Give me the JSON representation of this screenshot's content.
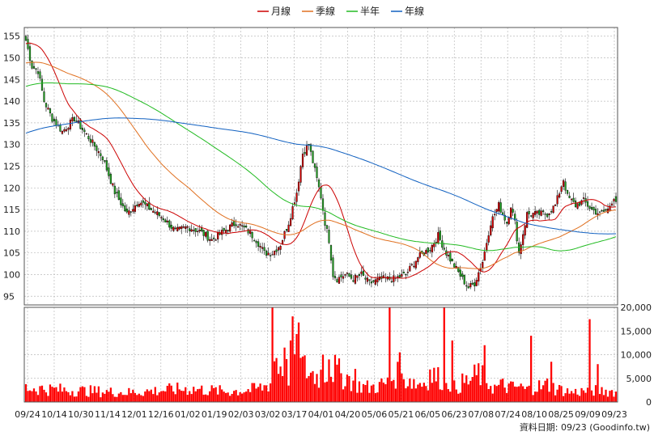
{
  "chart_data": {
    "type": "candlestick",
    "legend": {
      "placement": "top-center",
      "items": [
        {
          "label": "月線",
          "color": "#cc0000"
        },
        {
          "label": "季線",
          "color": "#e07020"
        },
        {
          "label": "半年",
          "color": "#22bb22"
        },
        {
          "label": "年線",
          "color": "#1060c0"
        }
      ]
    },
    "price_axis": {
      "ticks": [
        95,
        100,
        105,
        110,
        115,
        120,
        125,
        130,
        135,
        140,
        145,
        150,
        155
      ],
      "ylim": [
        93,
        157
      ]
    },
    "volume_axis": {
      "ticks": [
        "20,000",
        "15,000",
        "10,000",
        "5,000",
        "0"
      ],
      "values": [
        20000,
        15000,
        10000,
        5000,
        0
      ],
      "ylim": [
        0,
        20000
      ]
    },
    "x_ticks": [
      "09/24",
      "10/14",
      "10/30",
      "11/14",
      "12/01",
      "12/16",
      "01/02",
      "01/19",
      "02/03",
      "03/02",
      "03/17",
      "04/01",
      "04/20",
      "05/06",
      "05/21",
      "06/05",
      "06/23",
      "07/08",
      "07/24",
      "08/10",
      "08/25",
      "09/09",
      "09/23"
    ],
    "grid": true,
    "colors": {
      "up": "#dd0000",
      "down": "#22aa22",
      "volume": "#ff0000",
      "grid": "#bbbbbb",
      "plot_bg": "#ffffff"
    },
    "close_anchors": [
      [
        0,
        154
      ],
      [
        3,
        148
      ],
      [
        6,
        147
      ],
      [
        9,
        140
      ],
      [
        13,
        136
      ],
      [
        18,
        133
      ],
      [
        24,
        136
      ],
      [
        32,
        131
      ],
      [
        38,
        127
      ],
      [
        44,
        119
      ],
      [
        50,
        114
      ],
      [
        56,
        117
      ],
      [
        62,
        115
      ],
      [
        68,
        113
      ],
      [
        74,
        110
      ],
      [
        80,
        111
      ],
      [
        86,
        110
      ],
      [
        92,
        108
      ],
      [
        98,
        110
      ],
      [
        104,
        112
      ],
      [
        110,
        110
      ],
      [
        114,
        108
      ],
      [
        118,
        105
      ],
      [
        122,
        105
      ],
      [
        126,
        107
      ],
      [
        130,
        112
      ],
      [
        134,
        119
      ],
      [
        137,
        128
      ],
      [
        140,
        130
      ],
      [
        143,
        124
      ],
      [
        146,
        118
      ],
      [
        148,
        112
      ],
      [
        150,
        108
      ],
      [
        152,
        100
      ],
      [
        154,
        99
      ],
      [
        158,
        100
      ],
      [
        162,
        99
      ],
      [
        166,
        100
      ],
      [
        170,
        98
      ],
      [
        176,
        99
      ],
      [
        182,
        99
      ],
      [
        188,
        100
      ],
      [
        194,
        104
      ],
      [
        200,
        106
      ],
      [
        204,
        109
      ],
      [
        208,
        105
      ],
      [
        212,
        102
      ],
      [
        216,
        99
      ],
      [
        219,
        97
      ],
      [
        222,
        98
      ],
      [
        226,
        103
      ],
      [
        230,
        112
      ],
      [
        234,
        116
      ],
      [
        238,
        112
      ],
      [
        240,
        116
      ],
      [
        242,
        112
      ],
      [
        244,
        105
      ],
      [
        248,
        114
      ],
      [
        252,
        114
      ],
      [
        258,
        114
      ],
      [
        262,
        116
      ],
      [
        266,
        122
      ],
      [
        268,
        118
      ],
      [
        272,
        116
      ],
      [
        276,
        117
      ],
      [
        280,
        115
      ],
      [
        284,
        114
      ],
      [
        288,
        115
      ],
      [
        291,
        118
      ],
      [
        292,
        117
      ]
    ],
    "volume_anchors": [
      [
        0,
        3000
      ],
      [
        20,
        2500
      ],
      [
        50,
        2000
      ],
      [
        80,
        2800
      ],
      [
        100,
        2200
      ],
      [
        112,
        2600
      ],
      [
        118,
        3200
      ],
      [
        121,
        4200
      ],
      [
        122,
        11000
      ],
      [
        125,
        8000
      ],
      [
        130,
        6000
      ],
      [
        131,
        6500
      ],
      [
        132,
        12000
      ],
      [
        135,
        8000
      ],
      [
        138,
        7000
      ],
      [
        141,
        6000
      ],
      [
        145,
        5500
      ],
      [
        149,
        7000
      ],
      [
        150,
        8000
      ],
      [
        155,
        6000
      ],
      [
        160,
        5000
      ],
      [
        165,
        3500
      ],
      [
        170,
        3000
      ],
      [
        175,
        3500
      ],
      [
        180,
        4000
      ],
      [
        183,
        6000
      ],
      [
        186,
        4500
      ],
      [
        190,
        5000
      ],
      [
        193,
        3800
      ],
      [
        197,
        4200
      ],
      [
        200,
        6000
      ],
      [
        204,
        5000
      ],
      [
        208,
        5500
      ],
      [
        212,
        3000
      ],
      [
        216,
        4000
      ],
      [
        220,
        4500
      ],
      [
        224,
        6000
      ],
      [
        228,
        4500
      ],
      [
        232,
        3000
      ],
      [
        236,
        3500
      ],
      [
        240,
        3000
      ],
      [
        244,
        3200
      ],
      [
        248,
        2500
      ],
      [
        252,
        3500
      ],
      [
        256,
        3000
      ],
      [
        258,
        3800
      ],
      [
        262,
        2800
      ],
      [
        266,
        2500
      ],
      [
        270,
        2000
      ],
      [
        280,
        2500
      ],
      [
        292,
        2200
      ]
    ],
    "volume_spikes": [
      [
        122,
        20000
      ],
      [
        128,
        11500
      ],
      [
        131,
        13000
      ],
      [
        135,
        16800
      ],
      [
        147,
        10000
      ],
      [
        150,
        9000
      ],
      [
        163,
        7000
      ],
      [
        180,
        20000
      ],
      [
        185,
        10500
      ],
      [
        207,
        20000
      ],
      [
        211,
        13000
      ],
      [
        227,
        12000
      ],
      [
        250,
        14000
      ],
      [
        260,
        8500
      ],
      [
        279,
        17500
      ],
      [
        283,
        8000
      ]
    ],
    "moving_averages": [
      {
        "name": "月線",
        "color": "#cc0000",
        "window": 20
      },
      {
        "name": "季線",
        "color": "#e07020",
        "window": 60
      },
      {
        "name": "半年",
        "color": "#22bb22",
        "window": 120
      },
      {
        "name": "年線",
        "color": "#1060c0",
        "window": 240
      }
    ],
    "credit": "資料日期: 09/23 (Goodinfo.tw)"
  }
}
